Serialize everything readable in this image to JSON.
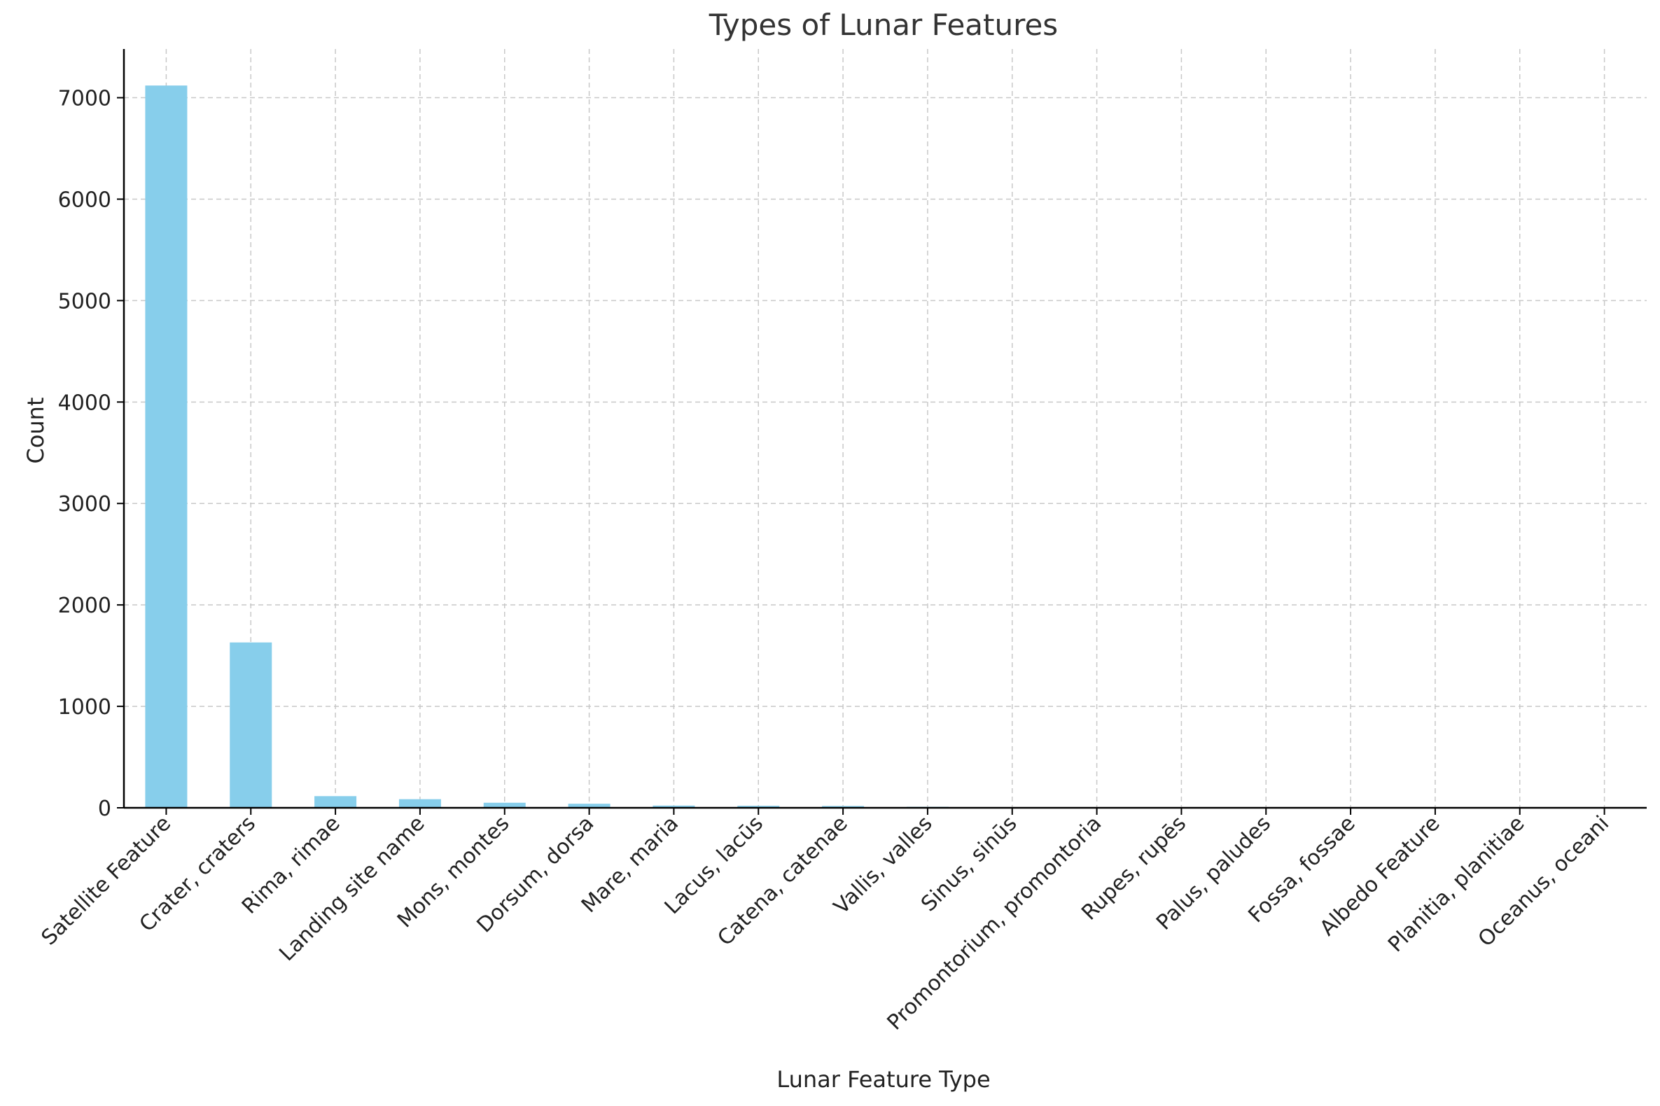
{
  "chart_data": {
    "type": "bar",
    "title": "Types of Lunar Features",
    "xlabel": "Lunar Feature Type",
    "ylabel": "Count",
    "categories": [
      "Satellite Feature",
      "Crater, craters",
      "Rima, rimae",
      "Landing site name",
      "Mons, montes",
      "Dorsum, dorsa",
      "Mare, maria",
      "Lacus, lacūs",
      "Catena, catenae",
      "Vallis, valles",
      "Sinus, sinūs",
      "Promontorium, promontoria",
      "Rupes, rupēs",
      "Palus, paludes",
      "Fossa, fossae",
      "Albedo Feature",
      "Planitia, planitiae",
      "Oceanus, oceani"
    ],
    "values": [
      7120,
      1630,
      115,
      85,
      50,
      40,
      22,
      20,
      18,
      10,
      6,
      5,
      4,
      3,
      2,
      1,
      1,
      1
    ],
    "yticks": [
      0,
      1000,
      2000,
      3000,
      4000,
      5000,
      6000,
      7000
    ],
    "ylim": [
      0,
      7480
    ],
    "bar_color": "#87ceeb",
    "grid": true
  }
}
